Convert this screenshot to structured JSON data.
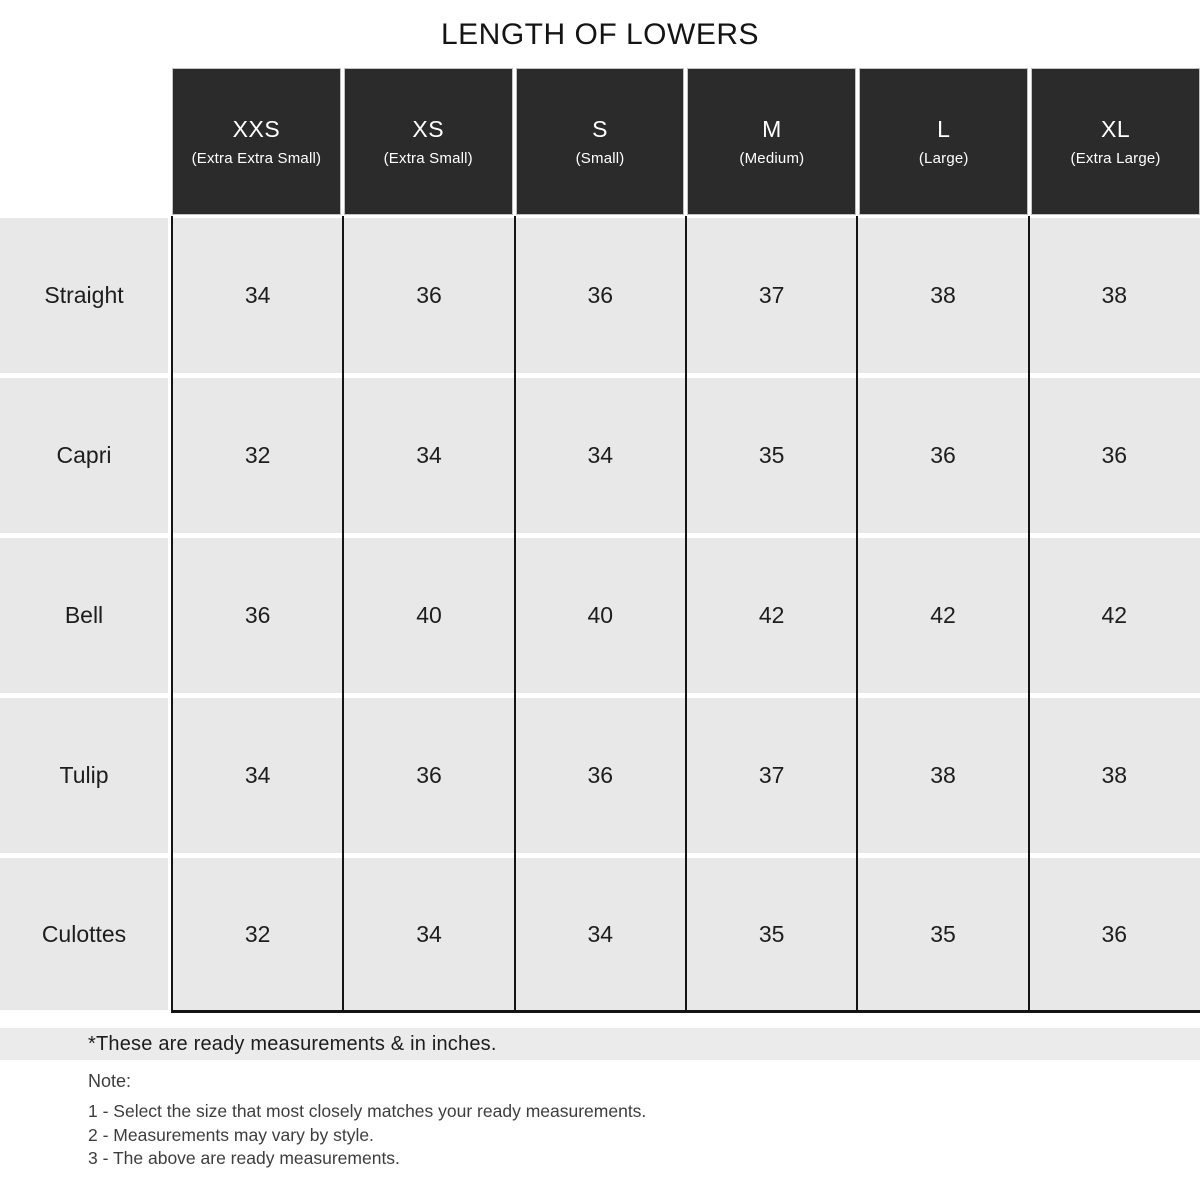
{
  "chart_data": {
    "type": "table",
    "title": "LENGTH OF LOWERS",
    "units": "inches",
    "columns": [
      {
        "size": "XXS",
        "full": "(Extra Extra Small)"
      },
      {
        "size": "XS",
        "full": "(Extra Small)"
      },
      {
        "size": "S",
        "full": "(Small)"
      },
      {
        "size": "M",
        "full": "(Medium)"
      },
      {
        "size": "L",
        "full": "(Large)"
      },
      {
        "size": "XL",
        "full": "(Extra Large)"
      }
    ],
    "rows": [
      {
        "label": "Straight",
        "values": [
          "34",
          "36",
          "36",
          "37",
          "38",
          "38"
        ]
      },
      {
        "label": "Capri",
        "values": [
          "32",
          "34",
          "34",
          "35",
          "36",
          "36"
        ]
      },
      {
        "label": "Bell",
        "values": [
          "36",
          "40",
          "40",
          "42",
          "42",
          "42"
        ]
      },
      {
        "label": "Tulip",
        "values": [
          "34",
          "36",
          "36",
          "37",
          "38",
          "38"
        ]
      },
      {
        "label": "Culottes",
        "values": [
          "32",
          "34",
          "34",
          "35",
          "35",
          "36"
        ]
      }
    ]
  },
  "footnote": "*These are ready measurements & in inches.",
  "note": {
    "heading": "Note:",
    "items": [
      "1 - Select the size that most closely matches your ready measurements.",
      "2 - Measurements may vary by style.",
      "3 - The above are ready measurements."
    ]
  },
  "colors": {
    "header_bg": "#2b2b2b",
    "header_text": "#ffffff",
    "cell_bg": "#e9e8e8",
    "grid_line": "#141414",
    "footnote_bg": "#ebebeb",
    "note_text": "#3d3d3d"
  }
}
